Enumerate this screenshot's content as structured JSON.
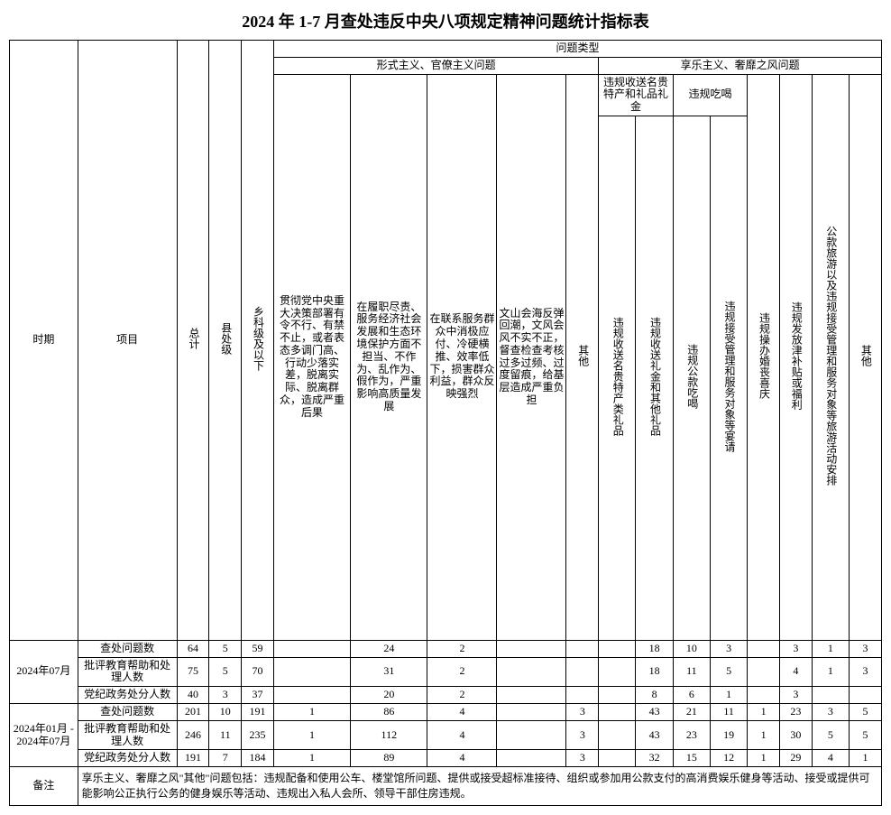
{
  "title": "2024 年 1-7 月查处违反中央八项规定精神问题统计指标表",
  "header": {
    "period": "时期",
    "item": "项目",
    "total": "总计",
    "county": "县处级",
    "township": "乡科级及以下",
    "problem_type": "问题类型",
    "formalism": "形式主义、官僚主义问题",
    "hedonism": "享乐主义、奢靡之风问题",
    "f1": "贯彻党中央重大决策部署有令不行、有禁不止，或者表态多调门高、行动少落实差，脱离实际、脱离群众，造成严重后果",
    "f2": "在履职尽责、服务经济社会发展和生态环境保护方面不担当、不作为、乱作为、假作为，严重影响高质量发展",
    "f3": "在联系服务群众中消极应付、冷硬横推、效率低下，损害群众利益，群众反映强烈",
    "f4": "文山会海反弹回潮，文风会风不实不正，督查检查考核过多过频、过度留痕，给基层造成严重负担",
    "f_other": "其他",
    "h_gifts": "违规收送名贵特产和礼品礼金",
    "h_g1": "违规收送名贵特产类礼品",
    "h_g2": "违规收送礼金和其他礼品",
    "h_eat": "违规吃喝",
    "h_e1": "违规公款吃喝",
    "h_e2": "违规接受管理和服务对象等宴请",
    "h_wed": "违规操办婚丧喜庆",
    "h_allow": "违规发放津补贴或福利",
    "h_travel": "公款旅游以及违规接受管理和服务对象等旅游活动安排",
    "h_other": "其他"
  },
  "periods": [
    {
      "label": "2024年07月",
      "rows": [
        {
          "item": "查处问题数",
          "total": "64",
          "county": "5",
          "township": "59",
          "f1": "",
          "f2": "24",
          "f3": "2",
          "f4": "",
          "f_other": "",
          "hg1": "",
          "hg2": "18",
          "he1": "10",
          "he2": "3",
          "hwed": "",
          "hallow": "3",
          "htravel": "1",
          "hother": "3"
        },
        {
          "item": "批评教育帮助和处理人数",
          "total": "75",
          "county": "5",
          "township": "70",
          "f1": "",
          "f2": "31",
          "f3": "2",
          "f4": "",
          "f_other": "",
          "hg1": "",
          "hg2": "18",
          "he1": "11",
          "he2": "5",
          "hwed": "",
          "hallow": "4",
          "htravel": "1",
          "hother": "3"
        },
        {
          "item": "党纪政务处分人数",
          "total": "40",
          "county": "3",
          "township": "37",
          "f1": "",
          "f2": "20",
          "f3": "2",
          "f4": "",
          "f_other": "",
          "hg1": "",
          "hg2": "8",
          "he1": "6",
          "he2": "1",
          "hwed": "",
          "hallow": "3",
          "htravel": "",
          "hother": ""
        }
      ]
    },
    {
      "label": "2024年01月 - 2024年07月",
      "rows": [
        {
          "item": "查处问题数",
          "total": "201",
          "county": "10",
          "township": "191",
          "f1": "1",
          "f2": "86",
          "f3": "4",
          "f4": "",
          "f_other": "3",
          "hg1": "",
          "hg2": "43",
          "he1": "21",
          "he2": "11",
          "hwed": "1",
          "hallow": "23",
          "htravel": "3",
          "hother": "5"
        },
        {
          "item": "批评教育帮助和处理人数",
          "total": "246",
          "county": "11",
          "township": "235",
          "f1": "1",
          "f2": "112",
          "f3": "4",
          "f4": "",
          "f_other": "3",
          "hg1": "",
          "hg2": "43",
          "he1": "23",
          "he2": "19",
          "hwed": "1",
          "hallow": "30",
          "htravel": "5",
          "hother": "5"
        },
        {
          "item": "党纪政务处分人数",
          "total": "191",
          "county": "7",
          "township": "184",
          "f1": "1",
          "f2": "89",
          "f3": "4",
          "f4": "",
          "f_other": "3",
          "hg1": "",
          "hg2": "32",
          "he1": "15",
          "he2": "12",
          "hwed": "1",
          "hallow": "29",
          "htravel": "4",
          "hother": "1"
        }
      ]
    }
  ],
  "note_label": "备注",
  "note": "享乐主义、奢靡之风\"其他\"问题包括：违规配备和使用公车、楼堂馆所问题、提供或接受超标准接待、组织或参加用公款支付的高消费娱乐健身等活动、接受或提供可能影响公正执行公务的健身娱乐等活动、违规出入私人会所、领导干部住房违规。"
}
